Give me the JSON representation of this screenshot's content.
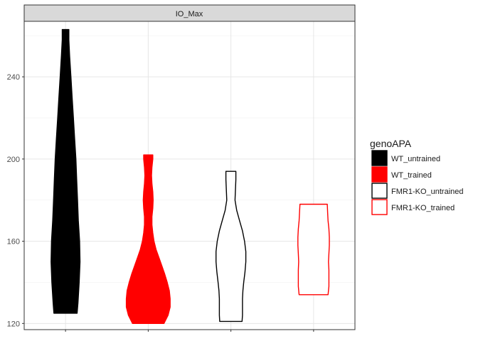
{
  "chart_data": {
    "type": "violin",
    "facet_label": "IO_Max",
    "ylim": [
      117,
      267
    ],
    "y_ticks": [
      120,
      160,
      200,
      240
    ],
    "grid": true,
    "legend": {
      "title": "genoAPA",
      "position": "right",
      "entries": [
        {
          "label": "WT_untrained",
          "fill": "#000000",
          "stroke": "#000000"
        },
        {
          "label": "WT_trained",
          "fill": "#ff0000",
          "stroke": "#ff0000"
        },
        {
          "label": "FMR1-KO_untrained",
          "fill": "#ffffff",
          "stroke": "#000000"
        },
        {
          "label": "FMR1-KO_trained",
          "fill": "#ffffff",
          "stroke": "#ff0000"
        }
      ]
    },
    "series": [
      {
        "fill": "#000000",
        "stroke": "#000000",
        "profile": [
          [
            125,
            0.28
          ],
          [
            130,
            0.3
          ],
          [
            140,
            0.33
          ],
          [
            150,
            0.35
          ],
          [
            160,
            0.34
          ],
          [
            170,
            0.31
          ],
          [
            180,
            0.29
          ],
          [
            190,
            0.27
          ],
          [
            200,
            0.25
          ],
          [
            210,
            0.22
          ],
          [
            220,
            0.19
          ],
          [
            230,
            0.16
          ],
          [
            240,
            0.13
          ],
          [
            250,
            0.1
          ],
          [
            258,
            0.08
          ],
          [
            263,
            0.08
          ]
        ]
      },
      {
        "fill": "#ff0000",
        "stroke": "#ff0000",
        "profile": [
          [
            120,
            0.38
          ],
          [
            124,
            0.48
          ],
          [
            128,
            0.53
          ],
          [
            132,
            0.53
          ],
          [
            136,
            0.51
          ],
          [
            140,
            0.46
          ],
          [
            144,
            0.4
          ],
          [
            148,
            0.33
          ],
          [
            152,
            0.26
          ],
          [
            156,
            0.19
          ],
          [
            160,
            0.14
          ],
          [
            164,
            0.11
          ],
          [
            168,
            0.09
          ],
          [
            172,
            0.09
          ],
          [
            176,
            0.11
          ],
          [
            180,
            0.12
          ],
          [
            184,
            0.11
          ],
          [
            188,
            0.09
          ],
          [
            192,
            0.08
          ],
          [
            196,
            0.09
          ],
          [
            200,
            0.11
          ],
          [
            202,
            0.11
          ]
        ]
      },
      {
        "fill": "#ffffff",
        "stroke": "#000000",
        "profile": [
          [
            121,
            0.27
          ],
          [
            124,
            0.28
          ],
          [
            128,
            0.28
          ],
          [
            132,
            0.28
          ],
          [
            136,
            0.29
          ],
          [
            140,
            0.31
          ],
          [
            145,
            0.34
          ],
          [
            150,
            0.36
          ],
          [
            155,
            0.36
          ],
          [
            160,
            0.33
          ],
          [
            165,
            0.28
          ],
          [
            170,
            0.21
          ],
          [
            175,
            0.14
          ],
          [
            180,
            0.1
          ],
          [
            185,
            0.11
          ],
          [
            190,
            0.12
          ],
          [
            194,
            0.12
          ]
        ]
      },
      {
        "fill": "#ffffff",
        "stroke": "#ff0000",
        "profile": [
          [
            134,
            0.35
          ],
          [
            138,
            0.37
          ],
          [
            142,
            0.37
          ],
          [
            146,
            0.37
          ],
          [
            150,
            0.36
          ],
          [
            154,
            0.37
          ],
          [
            158,
            0.38
          ],
          [
            162,
            0.38
          ],
          [
            166,
            0.37
          ],
          [
            170,
            0.35
          ],
          [
            174,
            0.34
          ],
          [
            178,
            0.33
          ]
        ]
      }
    ]
  }
}
